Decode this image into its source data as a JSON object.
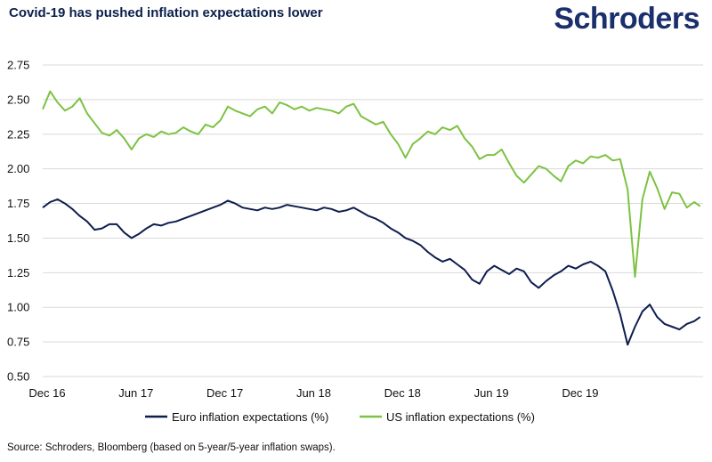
{
  "header": {
    "title": "Covid-19 has pushed inflation expectations lower",
    "brand": "Schroders"
  },
  "footer": {
    "source": "Source: Schroders, Bloomberg (based on 5-year/5-year inflation swaps)."
  },
  "colors": {
    "navy": "#0e1d4e",
    "green": "#7dc242",
    "grid": "#d9d9d9"
  },
  "chart_data": {
    "type": "line",
    "title": "Covid-19 has pushed inflation expectations lower",
    "xlabel": "",
    "ylabel": "",
    "ylim": [
      0.5,
      2.75
    ],
    "xlim": [
      0,
      44.6
    ],
    "yticks": [
      "2.75",
      "2.50",
      "2.25",
      "2.00",
      "1.75",
      "1.50",
      "1.25",
      "1.00",
      "0.75",
      "0.50"
    ],
    "ytick_values": [
      2.75,
      2.5,
      2.25,
      2.0,
      1.75,
      1.5,
      1.25,
      1.0,
      0.75,
      0.5
    ],
    "xticks": [
      "Dec 16",
      "Jun 17",
      "Dec 17",
      "Jun 18",
      "Dec 18",
      "Jun 19",
      "Dec 19"
    ],
    "xtick_values": [
      0,
      6,
      12,
      18,
      24,
      30,
      36
    ],
    "x_unit": "months since Dec 2016",
    "grid": true,
    "legend_position": "bottom",
    "series": [
      {
        "name": "Euro inflation expectations (%)",
        "color": "#0e1d4e",
        "x": [
          0,
          0.5,
          1,
          1.5,
          2,
          2.5,
          3,
          3.5,
          4,
          4.5,
          5,
          5.5,
          6,
          6.5,
          7,
          7.5,
          8,
          8.5,
          9,
          9.5,
          10,
          10.5,
          11,
          11.5,
          12,
          12.5,
          13,
          13.5,
          14,
          14.5,
          15,
          15.5,
          16,
          16.5,
          17,
          17.5,
          18,
          18.5,
          19,
          19.5,
          20,
          20.5,
          21,
          21.5,
          22,
          22.5,
          23,
          23.5,
          24,
          24.5,
          25,
          25.5,
          26,
          26.5,
          27,
          27.5,
          28,
          28.5,
          29,
          29.5,
          30,
          30.5,
          31,
          31.5,
          32,
          32.5,
          33,
          33.5,
          34,
          34.5,
          35,
          35.5,
          36,
          36.5,
          37,
          37.5,
          38,
          38.5,
          39,
          39.5,
          40,
          40.5,
          41,
          41.5,
          42,
          42.5,
          43,
          43.5,
          44,
          44.4
        ],
        "values": [
          1.72,
          1.76,
          1.78,
          1.75,
          1.71,
          1.66,
          1.62,
          1.56,
          1.57,
          1.6,
          1.6,
          1.54,
          1.5,
          1.53,
          1.57,
          1.6,
          1.59,
          1.61,
          1.62,
          1.64,
          1.66,
          1.68,
          1.7,
          1.72,
          1.74,
          1.77,
          1.75,
          1.72,
          1.71,
          1.7,
          1.72,
          1.71,
          1.72,
          1.74,
          1.73,
          1.72,
          1.71,
          1.7,
          1.72,
          1.71,
          1.69,
          1.7,
          1.72,
          1.69,
          1.66,
          1.64,
          1.61,
          1.57,
          1.54,
          1.5,
          1.48,
          1.45,
          1.4,
          1.36,
          1.33,
          1.35,
          1.31,
          1.27,
          1.2,
          1.17,
          1.26,
          1.3,
          1.27,
          1.24,
          1.28,
          1.26,
          1.18,
          1.14,
          1.19,
          1.23,
          1.26,
          1.3,
          1.28,
          1.31,
          1.33,
          1.3,
          1.26,
          1.12,
          0.95,
          0.73,
          0.86,
          0.97,
          1.02,
          0.93,
          0.88,
          0.86,
          0.84,
          0.88,
          0.9,
          0.93
        ]
      },
      {
        "name": "US inflation expectations (%)",
        "color": "#7dc242",
        "x": [
          0,
          0.5,
          1,
          1.5,
          2,
          2.5,
          3,
          3.5,
          4,
          4.5,
          5,
          5.5,
          6,
          6.5,
          7,
          7.5,
          8,
          8.5,
          9,
          9.5,
          10,
          10.5,
          11,
          11.5,
          12,
          12.5,
          13,
          13.5,
          14,
          14.5,
          15,
          15.5,
          16,
          16.5,
          17,
          17.5,
          18,
          18.5,
          19,
          19.5,
          20,
          20.5,
          21,
          21.5,
          22,
          22.5,
          23,
          23.5,
          24,
          24.5,
          25,
          25.5,
          26,
          26.5,
          27,
          27.5,
          28,
          28.5,
          29,
          29.5,
          30,
          30.5,
          31,
          31.5,
          32,
          32.5,
          33,
          33.5,
          34,
          34.5,
          35,
          35.5,
          36,
          36.5,
          37,
          37.5,
          38,
          38.5,
          39,
          39.5,
          40,
          40.5,
          41,
          41.5,
          42,
          42.5,
          43,
          43.5,
          44,
          44.4
        ],
        "values": [
          2.43,
          2.56,
          2.48,
          2.42,
          2.45,
          2.51,
          2.4,
          2.33,
          2.26,
          2.24,
          2.28,
          2.22,
          2.14,
          2.22,
          2.25,
          2.23,
          2.27,
          2.25,
          2.26,
          2.3,
          2.27,
          2.25,
          2.32,
          2.3,
          2.35,
          2.45,
          2.42,
          2.4,
          2.38,
          2.43,
          2.45,
          2.4,
          2.48,
          2.46,
          2.43,
          2.45,
          2.42,
          2.44,
          2.43,
          2.42,
          2.4,
          2.45,
          2.47,
          2.38,
          2.35,
          2.32,
          2.34,
          2.25,
          2.18,
          2.08,
          2.18,
          2.22,
          2.27,
          2.25,
          2.3,
          2.28,
          2.31,
          2.22,
          2.16,
          2.07,
          2.1,
          2.1,
          2.14,
          2.04,
          1.95,
          1.9,
          1.96,
          2.02,
          2.0,
          1.95,
          1.91,
          2.02,
          2.06,
          2.04,
          2.09,
          2.08,
          2.1,
          2.06,
          2.07,
          1.85,
          1.22,
          1.78,
          1.98,
          1.86,
          1.71,
          1.83,
          1.82,
          1.72,
          1.76,
          1.73
        ]
      }
    ]
  }
}
